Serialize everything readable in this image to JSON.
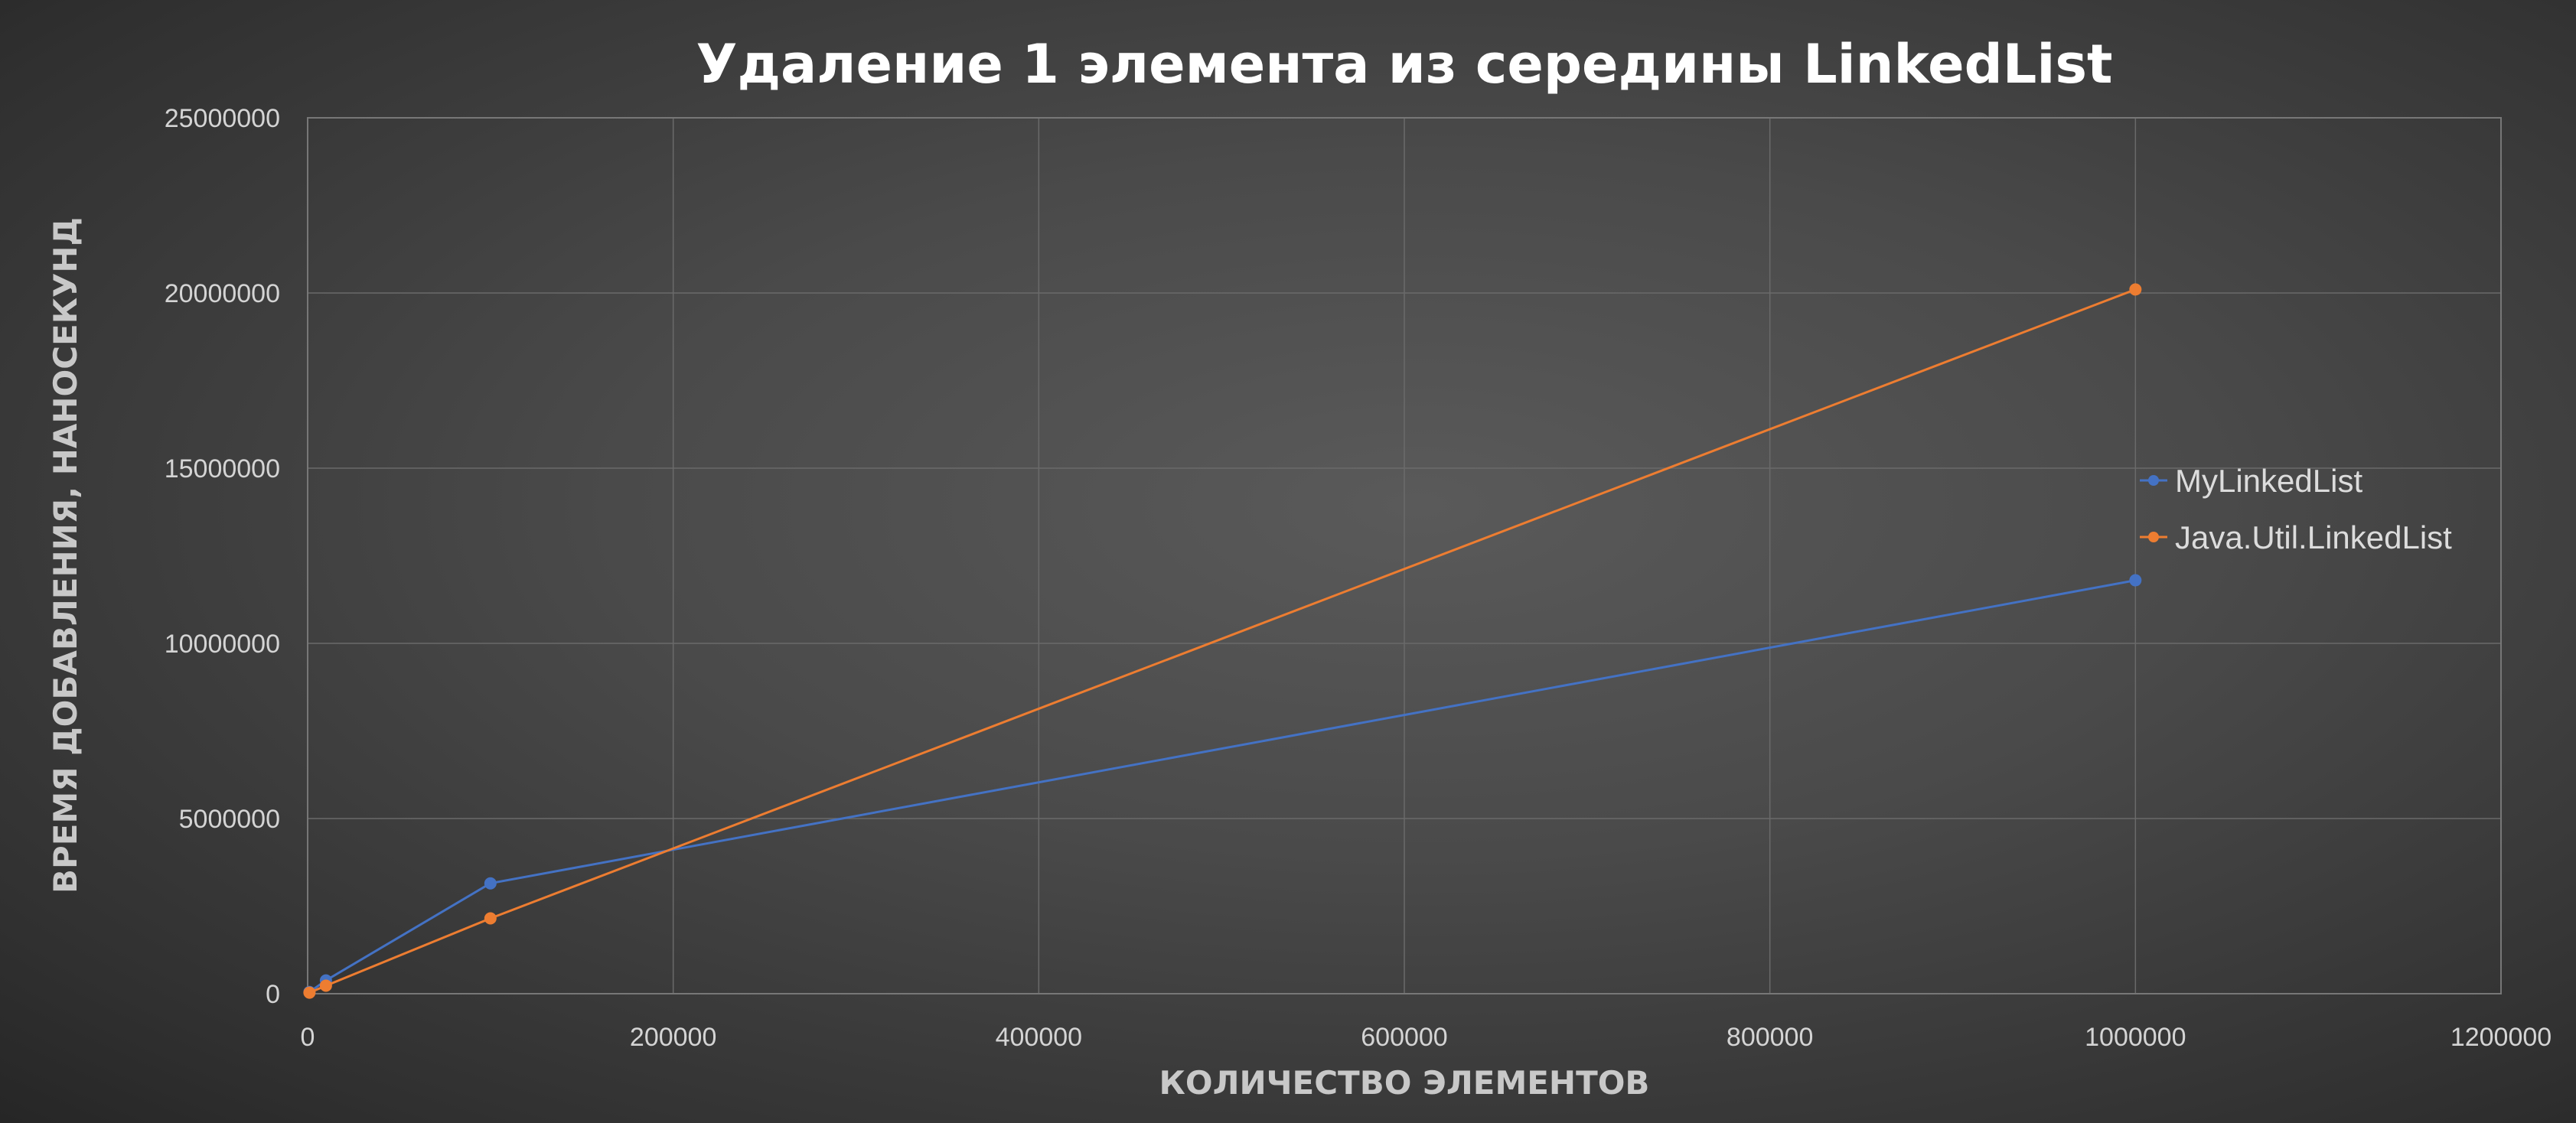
{
  "chart_data": {
    "type": "line",
    "title": "Удаление 1 элемента из середины LinkedList",
    "xlabel": "КОЛИЧЕСТВО ЭЛЕМЕНТОВ",
    "ylabel": "ВРЕМЯ ДОБАВЛЕНИЯ, НАНОСЕКУНД",
    "xlim": [
      0,
      1200000
    ],
    "ylim": [
      0,
      25000000
    ],
    "x_ticks": [
      "0",
      "200000",
      "400000",
      "600000",
      "800000",
      "1000000",
      "1200000"
    ],
    "y_ticks": [
      "0",
      "5000000",
      "10000000",
      "15000000",
      "20000000",
      "25000000"
    ],
    "grid": true,
    "legend_position": "right",
    "series": [
      {
        "name": "MyLinkedList",
        "color": "#4472c4",
        "x": [
          1000,
          10000,
          100000,
          1000000
        ],
        "y": [
          50000,
          380000,
          3150000,
          11800000
        ]
      },
      {
        "name": "Java.Util.LinkedList",
        "color": "#ed7d31",
        "x": [
          1000,
          10000,
          100000,
          1000000
        ],
        "y": [
          30000,
          230000,
          2150000,
          20100000
        ]
      }
    ]
  }
}
